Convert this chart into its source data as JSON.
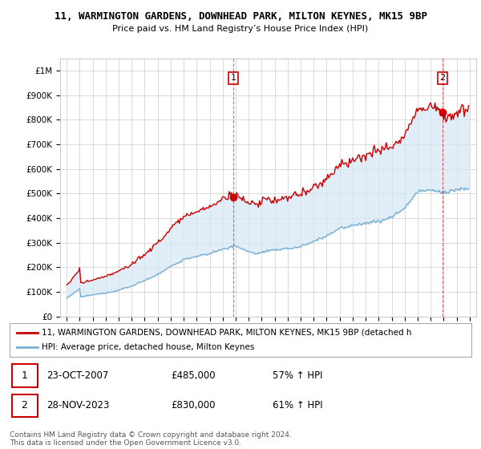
{
  "title": "11, WARMINGTON GARDENS, DOWNHEAD PARK, MILTON KEYNES, MK15 9BP",
  "subtitle": "Price paid vs. HM Land Registry’s House Price Index (HPI)",
  "ylim": [
    0,
    1050000
  ],
  "yticks": [
    0,
    100000,
    200000,
    300000,
    400000,
    500000,
    600000,
    700000,
    800000,
    900000,
    1000000
  ],
  "ytick_labels": [
    "£0",
    "£100K",
    "£200K",
    "£300K",
    "£400K",
    "£500K",
    "£600K",
    "£700K",
    "£800K",
    "£900K",
    "£1M"
  ],
  "hpi_color": "#7bafd4",
  "hpi_fill_color": "#d6e8f5",
  "price_color": "#cc0000",
  "vline_color": "#cc0000",
  "legend_label_price": "11, WARMINGTON GARDENS, DOWNHEAD PARK, MILTON KEYNES, MK15 9BP (detached h",
  "legend_label_hpi": "HPI: Average price, detached house, Milton Keynes",
  "sale1_date": "23-OCT-2007",
  "sale1_price": 485000,
  "sale1_pct": "57% ↑ HPI",
  "sale2_date": "28-NOV-2023",
  "sale2_price": 830000,
  "sale2_pct": "61% ↑ HPI",
  "footnote": "Contains HM Land Registry data © Crown copyright and database right 2024.\nThis data is licensed under the Open Government Licence v3.0.",
  "sale1_x": 2007.83,
  "sale2_x": 2023.92,
  "grid_color": "#cccccc",
  "bg_color": "#ffffff",
  "title_fontsize": 9,
  "subtitle_fontsize": 8
}
